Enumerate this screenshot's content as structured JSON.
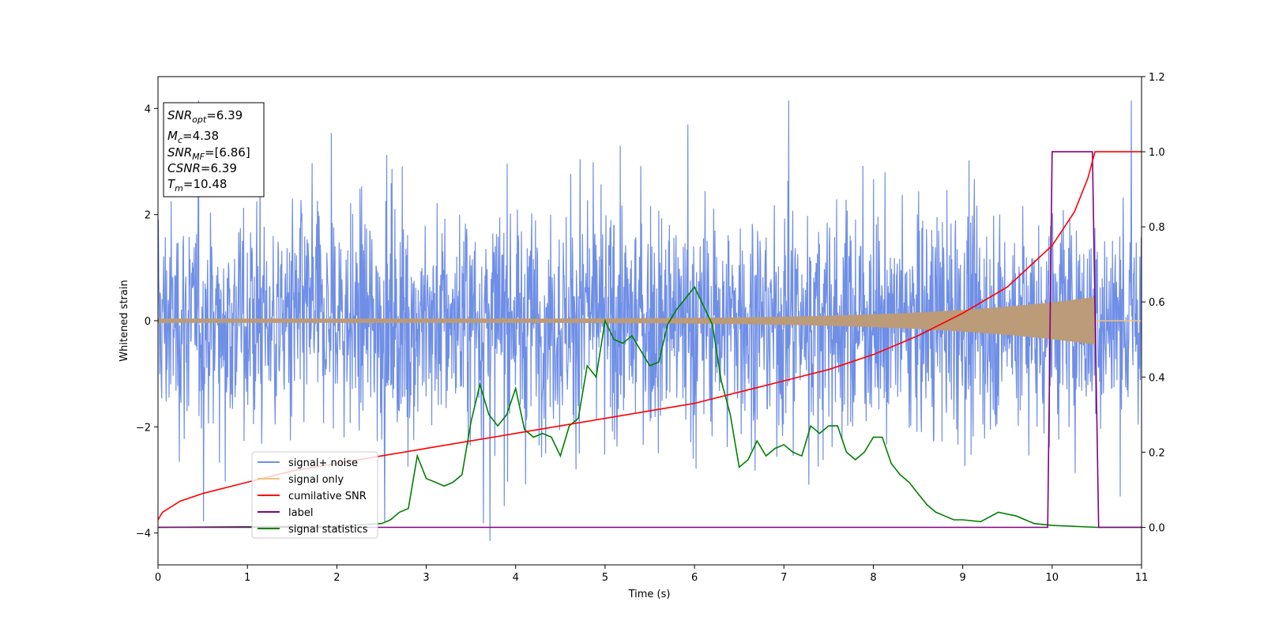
{
  "chart_data": {
    "type": "line",
    "x_range": [
      0,
      11
    ],
    "y_left_range": [
      -4.6,
      4.6
    ],
    "y_right_range": [
      -0.1,
      1.2
    ],
    "xlabel": "Time (s)",
    "ylabel": "Whitened strain",
    "x_ticks": [
      "0",
      "1",
      "2",
      "3",
      "4",
      "5",
      "6",
      "7",
      "8",
      "9",
      "10",
      "11"
    ],
    "y_left_ticks": [
      "−4",
      "−2",
      "0",
      "2",
      "4"
    ],
    "y_right_ticks": [
      "0.0",
      "0.2",
      "0.4",
      "0.6",
      "0.8",
      "1.0",
      "1.2"
    ],
    "info_box": {
      "snr_opt": {
        "main": "SNR",
        "sub": "opt",
        "value": "=6.39"
      },
      "mc": {
        "main": "M",
        "sub": "c",
        "value": "=4.38"
      },
      "snr_mf": {
        "main": "SNR",
        "sub": "MF",
        "value": "=[6.86]"
      },
      "csnr": {
        "main": "CSNR",
        "value": "=6.39"
      },
      "tm": {
        "main": "T",
        "sub": "m",
        "value": "=10.48"
      }
    },
    "legend": {
      "placement": "lower-left",
      "entries": [
        "signal+ noise",
        "signal only",
        "cumilative SNR",
        "label",
        "signal statistics"
      ]
    },
    "colors": {
      "noise": "#6f8ee6",
      "signal": "#f5c27a",
      "signal_overlap": "#bb9b78",
      "snr": "#ff0000",
      "label": "#800080",
      "stats": "#008000"
    },
    "series": [
      {
        "name": "signal+ noise",
        "axis": "left",
        "note_values": "dense noise trace, approx. range [-4.2, 4.2] around 0",
        "envelope": 1.9
      },
      {
        "name": "signal only",
        "axis": "left",
        "chirp_end": 10.48,
        "amplitude_start": 0.04,
        "amplitude_end": 0.45
      },
      {
        "name": "cumilative SNR",
        "axis": "right",
        "x": [
          0,
          0.05,
          0.25,
          0.5,
          1,
          1.5,
          2,
          2.5,
          3,
          3.5,
          4,
          4.5,
          5,
          5.5,
          6,
          6.5,
          7,
          7.5,
          8,
          8.5,
          9,
          9.5,
          10,
          10.25,
          10.4,
          10.48,
          10.6,
          11
        ],
        "y": [
          0.02,
          0.04,
          0.07,
          0.09,
          0.12,
          0.15,
          0.17,
          0.19,
          0.21,
          0.23,
          0.25,
          0.27,
          0.29,
          0.31,
          0.33,
          0.36,
          0.39,
          0.42,
          0.46,
          0.51,
          0.57,
          0.64,
          0.75,
          0.84,
          0.93,
          1.0,
          1.0,
          1.0
        ]
      },
      {
        "name": "label",
        "axis": "right",
        "x": [
          0,
          9.95,
          10.0,
          10.45,
          10.52,
          11
        ],
        "y": [
          0,
          0,
          1,
          1,
          0,
          0
        ]
      },
      {
        "name": "signal statistics",
        "axis": "right",
        "x": [
          0,
          2.0,
          2.5,
          2.6,
          2.7,
          2.8,
          2.9,
          3.0,
          3.1,
          3.2,
          3.3,
          3.4,
          3.5,
          3.6,
          3.7,
          3.8,
          3.9,
          4.0,
          4.1,
          4.2,
          4.3,
          4.4,
          4.5,
          4.6,
          4.7,
          4.8,
          4.9,
          5.0,
          5.1,
          5.2,
          5.3,
          5.4,
          5.5,
          5.6,
          5.7,
          5.8,
          5.9,
          6.0,
          6.1,
          6.2,
          6.3,
          6.4,
          6.5,
          6.6,
          6.7,
          6.8,
          6.9,
          7.0,
          7.1,
          7.2,
          7.3,
          7.4,
          7.5,
          7.6,
          7.7,
          7.8,
          7.9,
          8.0,
          8.1,
          8.2,
          8.3,
          8.4,
          8.5,
          8.6,
          8.7,
          8.8,
          8.9,
          9.0,
          9.2,
          9.4,
          9.6,
          9.8,
          10.0,
          10.5,
          11
        ],
        "y": [
          0.0,
          0.003,
          0.01,
          0.02,
          0.04,
          0.05,
          0.19,
          0.13,
          0.12,
          0.11,
          0.12,
          0.14,
          0.28,
          0.38,
          0.3,
          0.27,
          0.3,
          0.37,
          0.26,
          0.24,
          0.25,
          0.24,
          0.19,
          0.27,
          0.29,
          0.43,
          0.4,
          0.55,
          0.5,
          0.49,
          0.51,
          0.47,
          0.43,
          0.44,
          0.54,
          0.58,
          0.61,
          0.64,
          0.59,
          0.54,
          0.39,
          0.3,
          0.16,
          0.18,
          0.23,
          0.19,
          0.21,
          0.22,
          0.2,
          0.19,
          0.27,
          0.25,
          0.27,
          0.27,
          0.2,
          0.18,
          0.2,
          0.24,
          0.24,
          0.17,
          0.14,
          0.12,
          0.09,
          0.06,
          0.04,
          0.03,
          0.02,
          0.02,
          0.015,
          0.04,
          0.03,
          0.01,
          0.005,
          0.0,
          0.0
        ]
      }
    ]
  }
}
